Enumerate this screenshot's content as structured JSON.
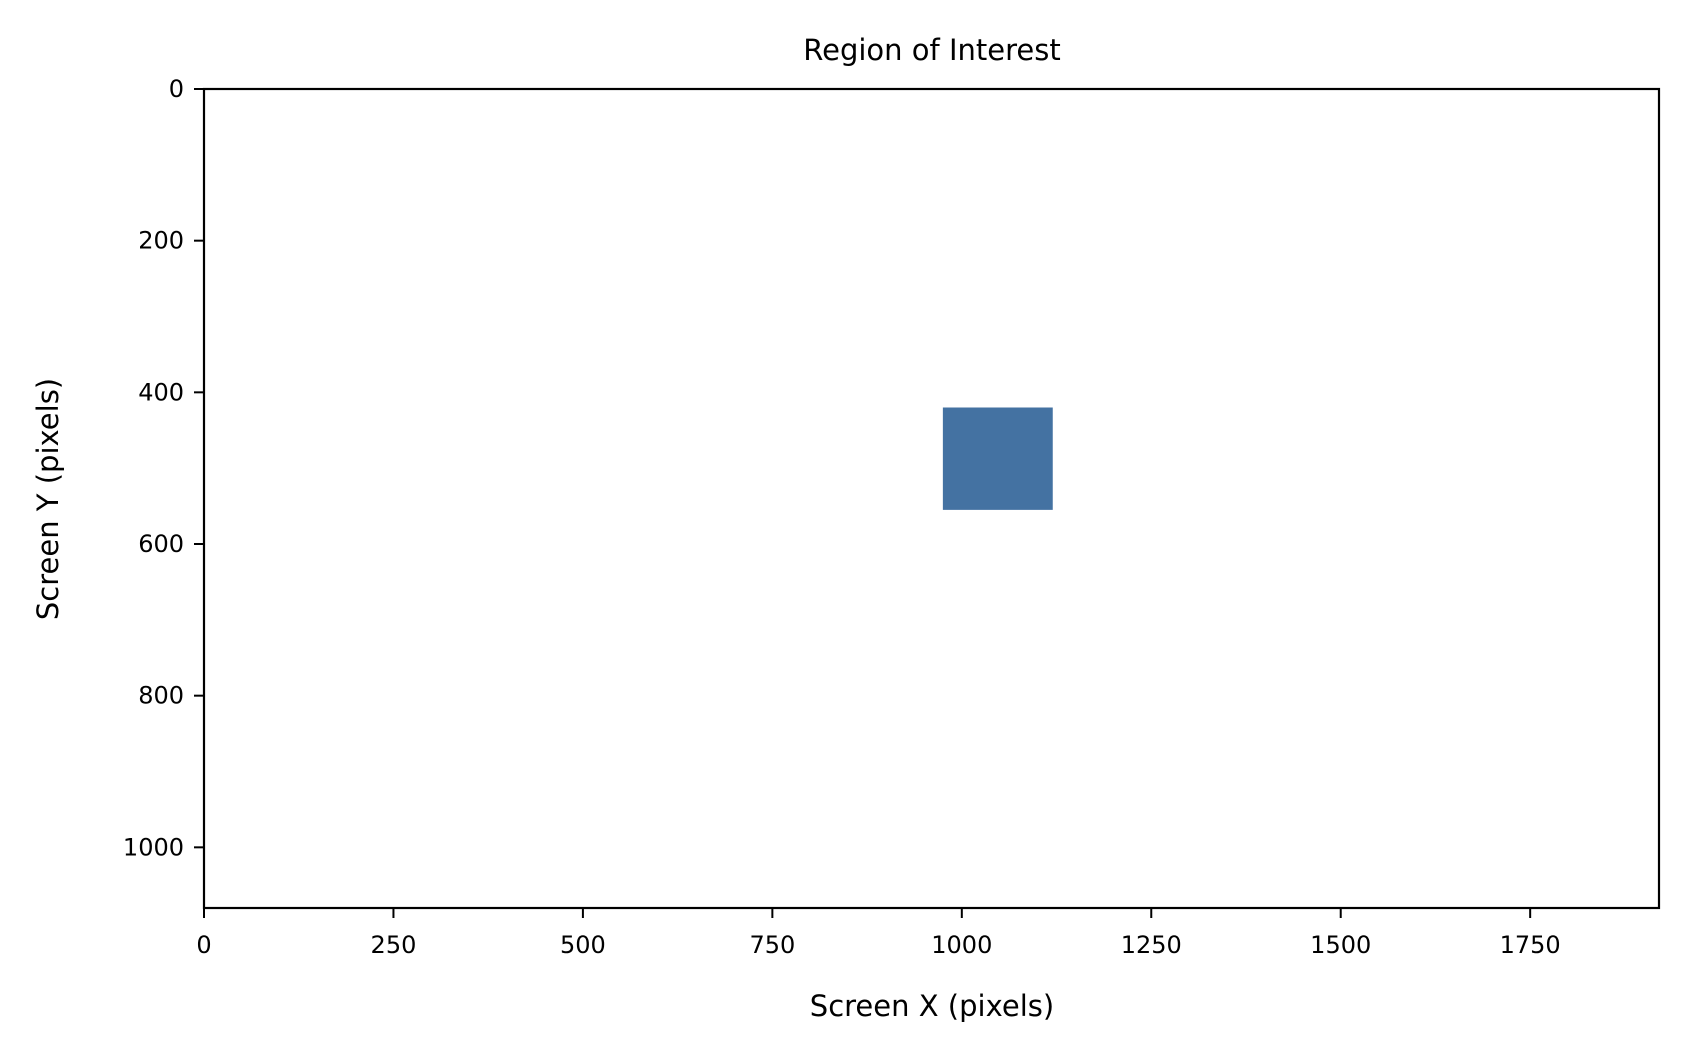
{
  "chart_data": {
    "type": "heatmap",
    "title": "Region of Interest",
    "xlabel": "Screen X (pixels)",
    "ylabel": "Screen Y (pixels)",
    "xlim": [
      0,
      1920
    ],
    "ylim": [
      1080,
      0
    ],
    "y_inverted": true,
    "x_ticks": [
      0,
      250,
      500,
      750,
      1000,
      1250,
      1500,
      1750
    ],
    "y_ticks": [
      0,
      200,
      400,
      600,
      800,
      1000
    ],
    "grid": false,
    "legend": null,
    "regions": [
      {
        "x_start": 975,
        "x_end": 1120,
        "y_start": 420,
        "y_end": 555,
        "color": "#4472a2"
      }
    ]
  }
}
